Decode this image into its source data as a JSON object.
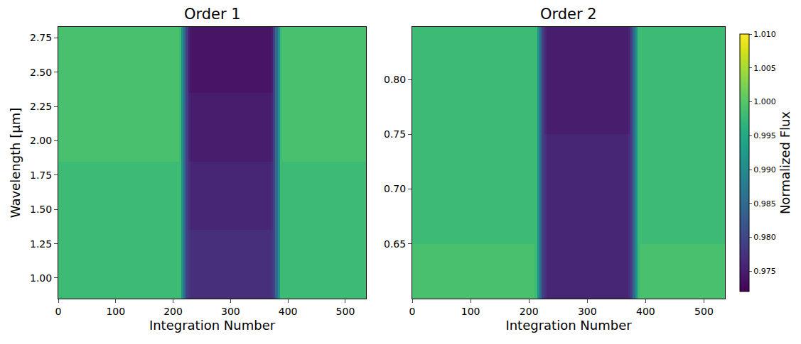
{
  "chart_data": {
    "type": "heatmap",
    "color": "Viridis",
    "colorbar": {
      "label": "Normalized Flux",
      "range": [
        0.972,
        1.01
      ],
      "ticks": [
        {
          "value": 0.975,
          "label": "0.975"
        },
        {
          "value": 0.98,
          "label": "0.980"
        },
        {
          "value": 0.985,
          "label": "0.985"
        },
        {
          "value": 0.99,
          "label": "0.990"
        },
        {
          "value": 0.995,
          "label": "0.995"
        },
        {
          "value": 1.0,
          "label": "1.000"
        },
        {
          "value": 1.005,
          "label": "1.005"
        },
        {
          "value": 1.01,
          "label": "1.010"
        }
      ]
    },
    "panels": [
      {
        "title": "Order 1",
        "x_label": "Integration Number",
        "y_label": "Wavelength [µm]",
        "xlim": [
          0,
          536
        ],
        "xticks": [
          0,
          100,
          200,
          300,
          400,
          500
        ],
        "ylim": [
          0.85,
          2.83
        ],
        "yticks": [
          {
            "value": 1.0,
            "label": "1.00"
          },
          {
            "value": 1.25,
            "label": "1.25"
          },
          {
            "value": 1.5,
            "label": "1.50"
          },
          {
            "value": 1.75,
            "label": "1.75"
          },
          {
            "value": 2.0,
            "label": "2.00"
          },
          {
            "value": 2.25,
            "label": "2.25"
          },
          {
            "value": 2.5,
            "label": "2.50"
          },
          {
            "value": 2.75,
            "label": "2.75"
          }
        ],
        "x_edges": [
          0,
          100,
          210,
          214,
          218,
          222,
          226,
          230,
          300,
          370,
          374,
          378,
          382,
          386,
          390,
          450,
          536
        ],
        "y_edges": [
          0.85,
          1.1,
          1.35,
          1.6,
          1.85,
          2.1,
          2.35,
          2.6,
          2.83
        ],
        "cells": [
          [
            0.998,
            0.998,
            0.998,
            0.991,
            0.985,
            0.979,
            0.978,
            0.977,
            0.977,
            0.978,
            0.979,
            0.985,
            0.991,
            0.998,
            0.998,
            0.998
          ],
          [
            0.998,
            0.998,
            0.998,
            0.991,
            0.985,
            0.979,
            0.978,
            0.977,
            0.977,
            0.978,
            0.979,
            0.985,
            0.991,
            0.998,
            0.998,
            0.998
          ],
          [
            0.998,
            0.998,
            0.998,
            0.991,
            0.985,
            0.979,
            0.977,
            0.976,
            0.976,
            0.977,
            0.979,
            0.985,
            0.991,
            0.998,
            0.998,
            0.998
          ],
          [
            0.998,
            0.998,
            0.998,
            0.991,
            0.985,
            0.979,
            0.977,
            0.976,
            0.976,
            0.977,
            0.979,
            0.985,
            0.991,
            0.998,
            0.998,
            0.998
          ],
          [
            0.999,
            0.999,
            0.998,
            0.991,
            0.985,
            0.979,
            0.976,
            0.975,
            0.975,
            0.976,
            0.979,
            0.985,
            0.991,
            0.998,
            0.999,
            0.999
          ],
          [
            0.999,
            0.999,
            0.998,
            0.991,
            0.985,
            0.979,
            0.976,
            0.975,
            0.975,
            0.976,
            0.979,
            0.985,
            0.991,
            0.998,
            0.999,
            0.999
          ],
          [
            0.999,
            0.999,
            0.998,
            0.991,
            0.985,
            0.979,
            0.975,
            0.974,
            0.974,
            0.975,
            0.979,
            0.985,
            0.991,
            0.998,
            0.999,
            0.999
          ],
          [
            0.999,
            0.999,
            0.998,
            0.991,
            0.985,
            0.979,
            0.975,
            0.974,
            0.974,
            0.975,
            0.979,
            0.985,
            0.991,
            0.998,
            0.999,
            0.999
          ]
        ]
      },
      {
        "title": "Order 2",
        "x_label": "Integration Number",
        "xlim": [
          0,
          536
        ],
        "xticks": [
          0,
          100,
          200,
          300,
          400,
          500
        ],
        "ylim": [
          0.6,
          0.848
        ],
        "yticks": [
          {
            "value": 0.65,
            "label": "0.65"
          },
          {
            "value": 0.7,
            "label": "0.70"
          },
          {
            "value": 0.75,
            "label": "0.75"
          },
          {
            "value": 0.8,
            "label": "0.80"
          }
        ],
        "x_edges": [
          0,
          100,
          210,
          214,
          218,
          222,
          226,
          230,
          300,
          370,
          374,
          378,
          382,
          386,
          390,
          450,
          536
        ],
        "y_edges": [
          0.6,
          0.65,
          0.7,
          0.75,
          0.8,
          0.848
        ],
        "cells": [
          [
            0.999,
            0.999,
            0.998,
            0.991,
            0.985,
            0.979,
            0.977,
            0.976,
            0.976,
            0.977,
            0.979,
            0.985,
            0.991,
            0.998,
            0.999,
            0.999
          ],
          [
            0.998,
            0.998,
            0.998,
            0.991,
            0.985,
            0.979,
            0.977,
            0.976,
            0.976,
            0.977,
            0.979,
            0.985,
            0.991,
            0.998,
            0.998,
            0.998
          ],
          [
            0.998,
            0.998,
            0.998,
            0.991,
            0.985,
            0.979,
            0.977,
            0.976,
            0.976,
            0.977,
            0.979,
            0.985,
            0.991,
            0.998,
            0.998,
            0.998
          ],
          [
            0.998,
            0.998,
            0.998,
            0.991,
            0.985,
            0.979,
            0.976,
            0.975,
            0.975,
            0.976,
            0.979,
            0.985,
            0.991,
            0.998,
            0.998,
            0.998
          ],
          [
            0.998,
            0.998,
            0.998,
            0.991,
            0.985,
            0.979,
            0.976,
            0.975,
            0.975,
            0.976,
            0.979,
            0.985,
            0.991,
            0.998,
            0.998,
            0.998
          ]
        ]
      }
    ]
  }
}
